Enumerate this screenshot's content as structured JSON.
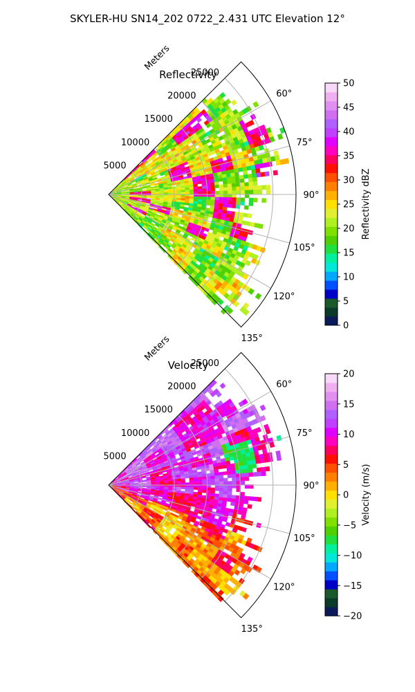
{
  "figure_title": "SKYLER-HU  SN14_202  0722_2.431 UTC Elevation 12°",
  "chart_data": [
    {
      "type": "heatmap",
      "subtype": "radar-ppi-sector",
      "title": "Reflectivity",
      "variable": "reflectivity",
      "range_label": "Meters",
      "range_ticks": [
        5000,
        10000,
        15000,
        20000,
        25000
      ],
      "range_tick_labels": [
        "5000",
        "10000",
        "15000",
        "20000",
        "25000"
      ],
      "range_max": 28500,
      "azimuth_range_deg": [
        45,
        135
      ],
      "azimuth_ticks": [
        60,
        75,
        90,
        105,
        120,
        135
      ],
      "azimuth_tick_labels": [
        "60°",
        "75°",
        "90°",
        "105°",
        "120°",
        "135°"
      ],
      "grid": true,
      "colorbar": {
        "label": "Reflectivity dBZ",
        "vmin": 0,
        "vmax": 50,
        "ticks": [
          0,
          5,
          10,
          15,
          20,
          25,
          30,
          35,
          40,
          45,
          50
        ],
        "tick_labels": [
          "0",
          "5",
          "10",
          "15",
          "20",
          "25",
          "30",
          "35",
          "40",
          "45",
          "50"
        ],
        "colors": [
          "#0a1a5a",
          "#0a3a2a",
          "#1a5a2a",
          "#0000c8",
          "#0050ff",
          "#00a8ff",
          "#00e8d8",
          "#00f0a0",
          "#20e040",
          "#50d000",
          "#80e000",
          "#b0f020",
          "#e0f030",
          "#ffe000",
          "#ffb000",
          "#ff8000",
          "#ff5000",
          "#ff1000",
          "#ff0060",
          "#ff00c0",
          "#e000ff",
          "#c040ff",
          "#b060ff",
          "#d070f0",
          "#e090f0",
          "#f0b0f0",
          "#f8d8f8"
        ]
      },
      "typical_values": "mostly 18–30 dBZ, embedded cores 32–38 dBZ"
    },
    {
      "type": "heatmap",
      "subtype": "radar-ppi-sector",
      "title": "Velocity",
      "variable": "velocity",
      "range_label": "Meters",
      "range_ticks": [
        5000,
        10000,
        15000,
        20000,
        25000
      ],
      "range_tick_labels": [
        "5000",
        "10000",
        "15000",
        "20000",
        "25000"
      ],
      "range_max": 28500,
      "azimuth_range_deg": [
        45,
        135
      ],
      "azimuth_ticks": [
        60,
        75,
        90,
        105,
        120,
        135
      ],
      "azimuth_tick_labels": [
        "60°",
        "75°",
        "90°",
        "105°",
        "120°",
        "135°"
      ],
      "grid": true,
      "colorbar": {
        "label": "Velocity (m/s)",
        "vmin": -20,
        "vmax": 20,
        "ticks": [
          -20,
          -15,
          -10,
          -5,
          0,
          5,
          10,
          15,
          20
        ],
        "tick_labels": [
          "−20",
          "−15",
          "−10",
          "−5",
          "0",
          "5",
          "10",
          "15",
          "20"
        ],
        "colors": [
          "#0a1a5a",
          "#0a3a2a",
          "#1a5a2a",
          "#0000c8",
          "#0050ff",
          "#00a8ff",
          "#00e8d8",
          "#00f0a0",
          "#20e040",
          "#50d000",
          "#80e000",
          "#b0f020",
          "#e0f030",
          "#ffe000",
          "#ffb000",
          "#ff8000",
          "#ff5000",
          "#ff1000",
          "#ff0060",
          "#ff00c0",
          "#e000ff",
          "#c040ff",
          "#b060ff",
          "#d070f0",
          "#e090f0",
          "#f0b0f0",
          "#f8d8f8"
        ]
      },
      "typical_values": "north part 10–17 m/s, south part 0–10 m/s, small patches −10 to −5 m/s"
    }
  ]
}
